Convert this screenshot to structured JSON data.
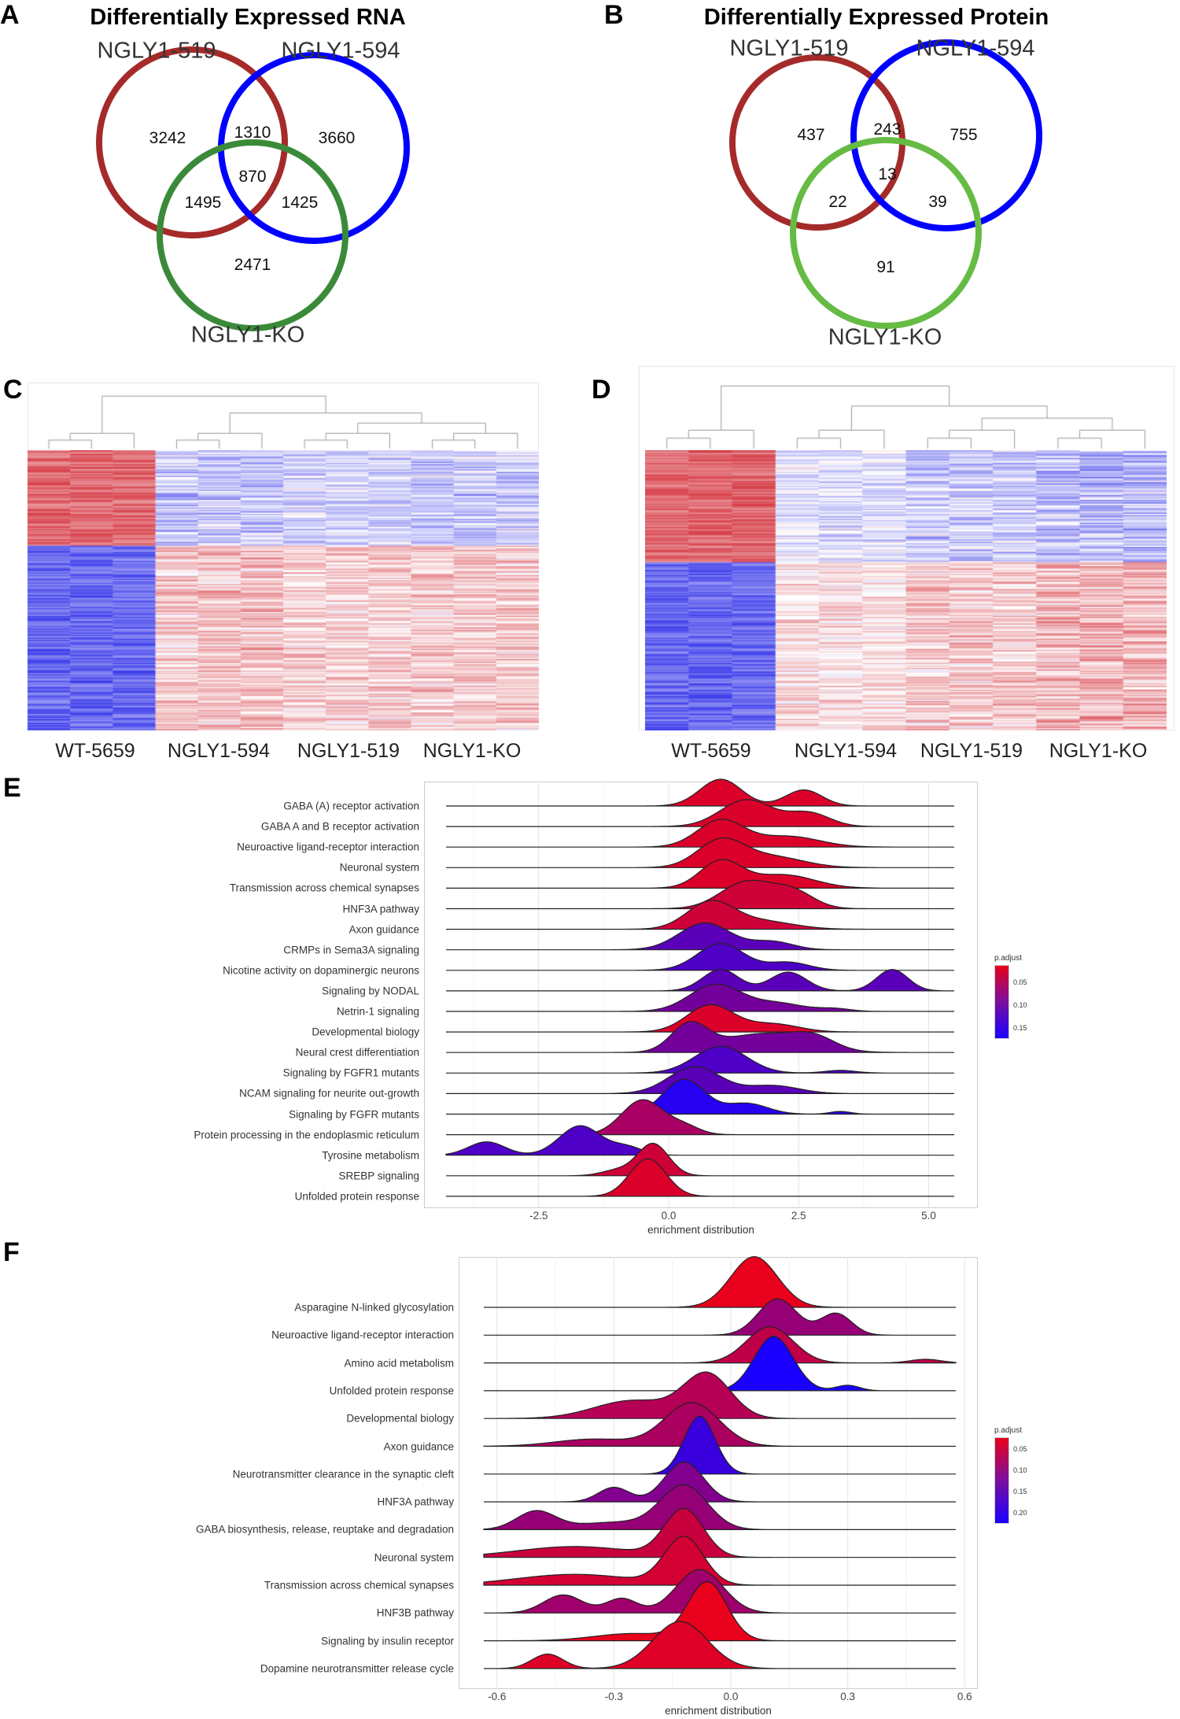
{
  "panels": {
    "a": "A",
    "b": "B",
    "c": "C",
    "d": "D",
    "e": "E",
    "f": "F"
  },
  "venn_rna": {
    "title": "Differentially Expressed RNA",
    "sets": [
      "NGLY1-519",
      "NGLY1-594",
      "NGLY1-KO"
    ],
    "counts": {
      "only519": "3242",
      "only594": "3660",
      "onlyKO": "2471",
      "s519_594": "1310",
      "s519_KO": "1495",
      "s594_KO": "1425",
      "all": "870"
    },
    "colors": [
      "#a52a2a",
      "#0000ff",
      "#3a8a3a"
    ]
  },
  "venn_protein": {
    "title": "Differentially Expressed Protein",
    "sets": [
      "NGLY1-519",
      "NGLY1-594",
      "NGLY1-KO"
    ],
    "counts": {
      "only519": "437",
      "only594": "755",
      "onlyKO": "91",
      "s519_594": "243",
      "s519_KO": "22",
      "s594_KO": "39",
      "all": "13"
    },
    "colors": [
      "#a52a2a",
      "#0000ff",
      "#66bb44"
    ]
  },
  "heatmap_c": {
    "groups": [
      "WT-5659",
      "NGLY1-594",
      "NGLY1-519",
      "NGLY1-KO"
    ]
  },
  "heatmap_d": {
    "groups": [
      "WT-5659",
      "NGLY1-594",
      "NGLY1-519",
      "NGLY1-KO"
    ]
  },
  "chart_data": [
    {
      "type": "ridgeline",
      "panel": "E",
      "xlabel": "enrichment distribution",
      "xlim": [
        -4.2,
        5.5
      ],
      "xticks": [
        "-2.5",
        "0.0",
        "2.5",
        "5.0"
      ],
      "xtick_values": [
        -2.5,
        0,
        2.5,
        5
      ],
      "legend": {
        "title": "p.adjust",
        "ticks": [
          "0.05",
          "0.10",
          "0.15"
        ],
        "range": [
          0.01,
          0.17
        ],
        "placement": "right"
      },
      "series": [
        {
          "name": "GABA (A) receptor activation",
          "p_adjust": 0.02,
          "peaks": [
            [
              1.0,
              0.4,
              1
            ],
            [
              2.6,
              0.35,
              0.6
            ]
          ]
        },
        {
          "name": "GABA A and B receptor activation",
          "p_adjust": 0.02,
          "peaks": [
            [
              1.5,
              0.5,
              1
            ],
            [
              2.7,
              0.4,
              0.5
            ]
          ]
        },
        {
          "name": "Neuroactive ligand-receptor interaction",
          "p_adjust": 0.02,
          "peaks": [
            [
              1.0,
              0.45,
              1
            ],
            [
              2.3,
              0.6,
              0.4
            ]
          ]
        },
        {
          "name": "Neuronal system",
          "p_adjust": 0.02,
          "peaks": [
            [
              1.0,
              0.45,
              1
            ],
            [
              2.0,
              0.6,
              0.4
            ]
          ]
        },
        {
          "name": "Transmission across chemical synapses",
          "p_adjust": 0.02,
          "peaks": [
            [
              1.0,
              0.4,
              1
            ],
            [
              2.2,
              0.6,
              0.5
            ]
          ]
        },
        {
          "name": "HNF3A pathway",
          "p_adjust": 0.03,
          "peaks": [
            [
              1.5,
              0.5,
              1
            ],
            [
              2.4,
              0.4,
              0.6
            ]
          ]
        },
        {
          "name": "Axon guidance",
          "p_adjust": 0.03,
          "peaks": [
            [
              0.8,
              0.45,
              1
            ],
            [
              1.8,
              0.6,
              0.3
            ]
          ]
        },
        {
          "name": "CRMPs in Sema3A signaling",
          "p_adjust": 0.12,
          "peaks": [
            [
              0.7,
              0.5,
              1
            ],
            [
              2.0,
              0.4,
              0.3
            ]
          ]
        },
        {
          "name": "Nicotine activity on dopaminergic neurons",
          "p_adjust": 0.13,
          "peaks": [
            [
              1.0,
              0.45,
              1
            ],
            [
              2.3,
              0.4,
              0.3
            ]
          ]
        },
        {
          "name": "Signaling by NODAL",
          "p_adjust": 0.12,
          "peaks": [
            [
              1.0,
              0.35,
              0.8
            ],
            [
              2.3,
              0.35,
              0.7
            ],
            [
              4.3,
              0.3,
              0.8
            ]
          ]
        },
        {
          "name": "Netrin-1 signaling",
          "p_adjust": 0.1,
          "peaks": [
            [
              0.9,
              0.5,
              1
            ],
            [
              2.1,
              0.5,
              0.3
            ],
            [
              3.2,
              0.3,
              0.1
            ]
          ]
        },
        {
          "name": "Developmental biology",
          "p_adjust": 0.02,
          "peaks": [
            [
              0.8,
              0.45,
              1
            ],
            [
              2.0,
              0.5,
              0.3
            ]
          ]
        },
        {
          "name": "Neural crest differentiation",
          "p_adjust": 0.1,
          "peaks": [
            [
              0.4,
              0.35,
              1
            ],
            [
              1.8,
              0.8,
              0.7
            ],
            [
              2.8,
              0.4,
              0.4
            ]
          ]
        },
        {
          "name": "Signaling by FGFR1 mutants",
          "p_adjust": 0.13,
          "peaks": [
            [
              1.0,
              0.5,
              1
            ],
            [
              3.3,
              0.3,
              0.1
            ]
          ]
        },
        {
          "name": "NCAM signaling for neurite out-growth",
          "p_adjust": 0.12,
          "peaks": [
            [
              0.5,
              0.5,
              1
            ],
            [
              2.0,
              0.5,
              0.3
            ]
          ]
        },
        {
          "name": "Signaling by FGFR mutants",
          "p_adjust": 0.16,
          "peaks": [
            [
              0.3,
              0.4,
              1.3
            ],
            [
              1.5,
              0.4,
              0.4
            ],
            [
              3.3,
              0.2,
              0.1
            ]
          ]
        },
        {
          "name": "Protein processing in the endoplasmic reticulum",
          "p_adjust": 0.06,
          "peaks": [
            [
              -0.5,
              0.4,
              1.3
            ],
            [
              0.3,
              0.3,
              0.3
            ]
          ]
        },
        {
          "name": "Tyrosine metabolism",
          "p_adjust": 0.13,
          "peaks": [
            [
              -3.5,
              0.35,
              0.5
            ],
            [
              -1.7,
              0.4,
              1.1
            ],
            [
              -0.8,
              0.3,
              0.3
            ]
          ]
        },
        {
          "name": "SREBP signaling",
          "p_adjust": 0.03,
          "peaks": [
            [
              -0.3,
              0.3,
              1.2
            ],
            [
              -1.0,
              0.3,
              0.2
            ]
          ]
        },
        {
          "name": "Unfolded protein response",
          "p_adjust": 0.02,
          "peaks": [
            [
              -0.4,
              0.35,
              1.4
            ]
          ]
        }
      ]
    },
    {
      "type": "ridgeline",
      "panel": "F",
      "xlabel": "enrichment distribution",
      "xlim": [
        -0.65,
        0.6
      ],
      "xticks": [
        "-0.6",
        "-0.3",
        "0.0",
        "0.3",
        "0.6"
      ],
      "xtick_values": [
        -0.6,
        -0.3,
        0,
        0.3,
        0.6
      ],
      "legend": {
        "title": "p.adjust",
        "ticks": [
          "0.05",
          "0.10",
          "0.15",
          "0.20"
        ],
        "range": [
          0.02,
          0.22
        ],
        "placement": "right"
      },
      "series": [
        {
          "name": "Asparagine N-linked glycosylation",
          "p_adjust": 0.02,
          "peaks": [
            [
              0.06,
              0.06,
              1.4
            ]
          ]
        },
        {
          "name": "Neuroactive ligand-receptor interaction",
          "p_adjust": 0.1,
          "peaks": [
            [
              0.12,
              0.05,
              1
            ],
            [
              0.27,
              0.04,
              0.6
            ]
          ]
        },
        {
          "name": "Amino acid metabolism",
          "p_adjust": 0.06,
          "peaks": [
            [
              0.1,
              0.06,
              1
            ],
            [
              0.5,
              0.04,
              0.1
            ]
          ]
        },
        {
          "name": "Unfolded protein response",
          "p_adjust": 0.22,
          "peaks": [
            [
              0.11,
              0.05,
              1.5
            ],
            [
              0.3,
              0.03,
              0.15
            ]
          ]
        },
        {
          "name": "Developmental biology",
          "p_adjust": 0.07,
          "peaks": [
            [
              -0.06,
              0.06,
              1.2
            ],
            [
              -0.25,
              0.1,
              0.5
            ]
          ]
        },
        {
          "name": "Axon guidance",
          "p_adjust": 0.08,
          "peaks": [
            [
              -0.1,
              0.07,
              1.2
            ],
            [
              -0.35,
              0.1,
              0.2
            ]
          ]
        },
        {
          "name": "Neurotransmitter clearance in the synaptic cleft",
          "p_adjust": 0.19,
          "peaks": [
            [
              -0.08,
              0.04,
              1.6
            ]
          ]
        },
        {
          "name": "HNF3A pathway",
          "p_adjust": 0.12,
          "peaks": [
            [
              -0.12,
              0.05,
              1.1
            ],
            [
              -0.3,
              0.04,
              0.4
            ]
          ]
        },
        {
          "name": "GABA biosynthesis, release, reuptake and degradation",
          "p_adjust": 0.1,
          "peaks": [
            [
              -0.12,
              0.06,
              1.2
            ],
            [
              -0.5,
              0.05,
              0.5
            ],
            [
              -0.3,
              0.1,
              0.2
            ]
          ]
        },
        {
          "name": "Neuronal system",
          "p_adjust": 0.05,
          "peaks": [
            [
              -0.12,
              0.05,
              1.3
            ],
            [
              -0.4,
              0.15,
              0.3
            ]
          ]
        },
        {
          "name": "Transmission across chemical synapses",
          "p_adjust": 0.04,
          "peaks": [
            [
              -0.12,
              0.05,
              1.3
            ],
            [
              -0.4,
              0.15,
              0.3
            ]
          ]
        },
        {
          "name": "HNF3B pathway",
          "p_adjust": 0.09,
          "peaks": [
            [
              -0.08,
              0.06,
              1.2
            ],
            [
              -0.43,
              0.05,
              0.5
            ],
            [
              -0.28,
              0.04,
              0.4
            ]
          ]
        },
        {
          "name": "Signaling by insulin receptor",
          "p_adjust": 0.02,
          "peaks": [
            [
              -0.06,
              0.05,
              1.6
            ],
            [
              -0.25,
              0.1,
              0.2
            ]
          ]
        },
        {
          "name": "Dopamine neurotransmitter release cycle",
          "p_adjust": 0.03,
          "peaks": [
            [
              -0.13,
              0.07,
              1.3
            ],
            [
              -0.47,
              0.04,
              0.4
            ]
          ]
        }
      ]
    }
  ]
}
